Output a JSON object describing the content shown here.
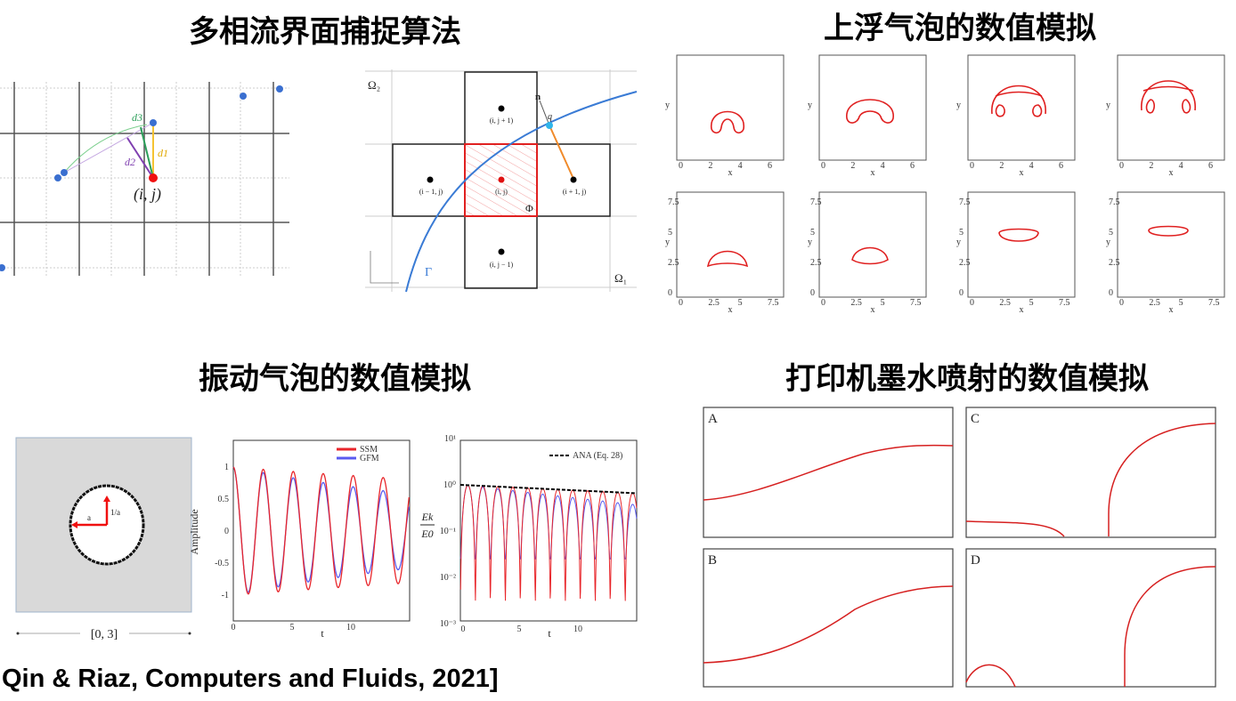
{
  "titles": {
    "interface_capture": "多相流界面捕捉算法",
    "rising_bubble": "上浮气泡的数值模拟",
    "oscillating_bubble": "振动气泡的数值模拟",
    "inkjet": "打印机墨水喷射的数值模拟"
  },
  "citation": "Qin & Riaz, Computers and Fluids, 2021]",
  "fig_interface_left": {
    "label_d1": "d1",
    "label_d2": "d2",
    "label_d3": "d3",
    "node_label": "(i, j)"
  },
  "fig_interface_right": {
    "omega2": "Ω₂",
    "omega1": "Ω₁",
    "gamma": "Γ",
    "phi": "Φ",
    "n": "n",
    "q": "q",
    "cells": [
      "(i, j + 1)",
      "(i − 1, j)",
      "(i, j)",
      "(i + 1, j)",
      "(i, j − 1)"
    ]
  },
  "rising_bubble": {
    "xlabel": "x",
    "ylabel": "y",
    "row1_xticks": [
      "0",
      "2",
      "4",
      "6"
    ],
    "row2_xticks": [
      "0",
      "2.5",
      "5",
      "7.5"
    ],
    "row2_yticks": [
      "0",
      "2.5",
      "5",
      "7.5"
    ]
  },
  "oscillating_bubble": {
    "domain_label": "[0, 3]",
    "label_a": "a",
    "label_inv_a": "1/a",
    "amplitude_plot": {
      "ylabel": "Amplitude",
      "xlabel": "t",
      "yticks": [
        "1",
        "0.5",
        "0",
        "-0.5",
        "-1"
      ],
      "xticks": [
        "0",
        "5",
        "10"
      ],
      "legend": [
        {
          "name": "SSM",
          "color": "#e8262b"
        },
        {
          "name": "GFM",
          "color": "#5a5af0"
        }
      ]
    },
    "energy_plot": {
      "ylabel_num": "Ek",
      "ylabel_den": "E0",
      "xlabel": "t",
      "yticks": [
        "10¹",
        "10⁰",
        "10⁻¹",
        "10⁻²",
        "10⁻³"
      ],
      "xticks": [
        "0",
        "5",
        "10"
      ],
      "legend": [
        {
          "name": "ANA (Eq. 28)",
          "color": "#000000"
        }
      ]
    }
  },
  "inkjet": {
    "panels": [
      "A",
      "C",
      "B",
      "D"
    ],
    "curve_color": "#d62020"
  }
}
